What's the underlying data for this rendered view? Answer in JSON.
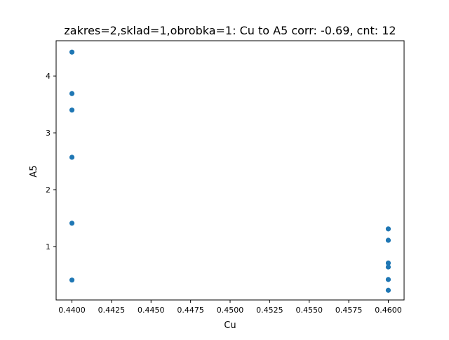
{
  "chart_data": {
    "type": "scatter",
    "title": "zakres=2,sklad=1,obrobka=1: Cu to A5 corr: -0.69, cnt: 12",
    "xlabel": "Cu",
    "ylabel": "A5",
    "xlim": [
      0.439,
      0.461
    ],
    "ylim": [
      0.06,
      4.62
    ],
    "x_ticks": [
      "0.4400",
      "0.4425",
      "0.4450",
      "0.4475",
      "0.4500",
      "0.4525",
      "0.4550",
      "0.4575",
      "0.4600"
    ],
    "y_ticks": [
      "1",
      "2",
      "3",
      "4"
    ],
    "grid": false,
    "marker_color": "#1f77b4",
    "points": [
      {
        "x": 0.44,
        "y": 4.42
      },
      {
        "x": 0.44,
        "y": 3.69
      },
      {
        "x": 0.44,
        "y": 3.4
      },
      {
        "x": 0.44,
        "y": 2.57
      },
      {
        "x": 0.44,
        "y": 1.41
      },
      {
        "x": 0.44,
        "y": 0.41
      },
      {
        "x": 0.46,
        "y": 1.31
      },
      {
        "x": 0.46,
        "y": 1.11
      },
      {
        "x": 0.46,
        "y": 0.71
      },
      {
        "x": 0.46,
        "y": 0.64
      },
      {
        "x": 0.46,
        "y": 0.42
      },
      {
        "x": 0.46,
        "y": 0.23
      }
    ]
  }
}
